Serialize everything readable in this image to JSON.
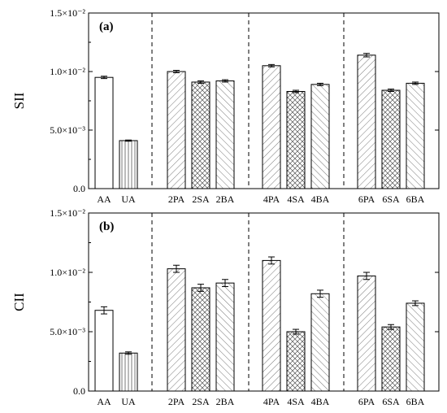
{
  "chart_data": [
    {
      "type": "bar",
      "panel_label": "(a)",
      "ylabel": "SII",
      "ylim": [
        0,
        0.015
      ],
      "yticks": [
        {
          "value": 0,
          "label": "0.0"
        },
        {
          "value": 0.005,
          "label": "5.0×10⁻³"
        },
        {
          "value": 0.01,
          "label": "1.0×10⁻²"
        },
        {
          "value": 0.015,
          "label": "1.5×10⁻²"
        }
      ],
      "categories": [
        "AA",
        "UA",
        "2PA",
        "2SA",
        "2BA",
        "4PA",
        "4SA",
        "4BA",
        "6PA",
        "6SA",
        "6BA"
      ],
      "values": [
        0.0095,
        0.0041,
        0.01,
        0.0091,
        0.0092,
        0.0105,
        0.0083,
        0.0089,
        0.0114,
        0.0084,
        0.009
      ],
      "errors": [
        0.0001,
        5e-05,
        0.0001,
        0.0001,
        0.0001,
        0.0001,
        0.0001,
        0.0001,
        0.00015,
        0.0001,
        0.0001
      ],
      "patterns": [
        "none",
        "vertical",
        "diag",
        "cross",
        "anti",
        "diag",
        "cross",
        "anti",
        "diag",
        "cross",
        "anti"
      ],
      "group_separators_after": [
        "UA",
        "2BA",
        "4BA"
      ]
    },
    {
      "type": "bar",
      "panel_label": "(b)",
      "ylabel": "CII",
      "ylim": [
        0,
        0.015
      ],
      "yticks": [
        {
          "value": 0,
          "label": "0.0"
        },
        {
          "value": 0.005,
          "label": "5.0×10⁻³"
        },
        {
          "value": 0.01,
          "label": "1.0×10⁻²"
        },
        {
          "value": 0.015,
          "label": "1.5×10⁻²"
        }
      ],
      "categories": [
        "AA",
        "UA",
        "2PA",
        "2SA",
        "2BA",
        "4PA",
        "4SA",
        "4BA",
        "6PA",
        "6SA",
        "6BA"
      ],
      "values": [
        0.0068,
        0.0032,
        0.0103,
        0.0087,
        0.0091,
        0.011,
        0.005,
        0.0082,
        0.0097,
        0.0054,
        0.0074
      ],
      "errors": [
        0.0003,
        0.0001,
        0.0003,
        0.0003,
        0.0003,
        0.0003,
        0.0002,
        0.0003,
        0.0003,
        0.0002,
        0.0002
      ],
      "patterns": [
        "none",
        "vertical",
        "diag",
        "cross",
        "anti",
        "diag",
        "cross",
        "anti",
        "diag",
        "cross",
        "anti"
      ],
      "group_separators_after": [
        "UA",
        "2BA",
        "4BA"
      ]
    }
  ],
  "colors": {
    "panel_label": "#e0161b",
    "axis": "#000000",
    "bar_fill": "#ffffff",
    "hatch": "#555555"
  }
}
